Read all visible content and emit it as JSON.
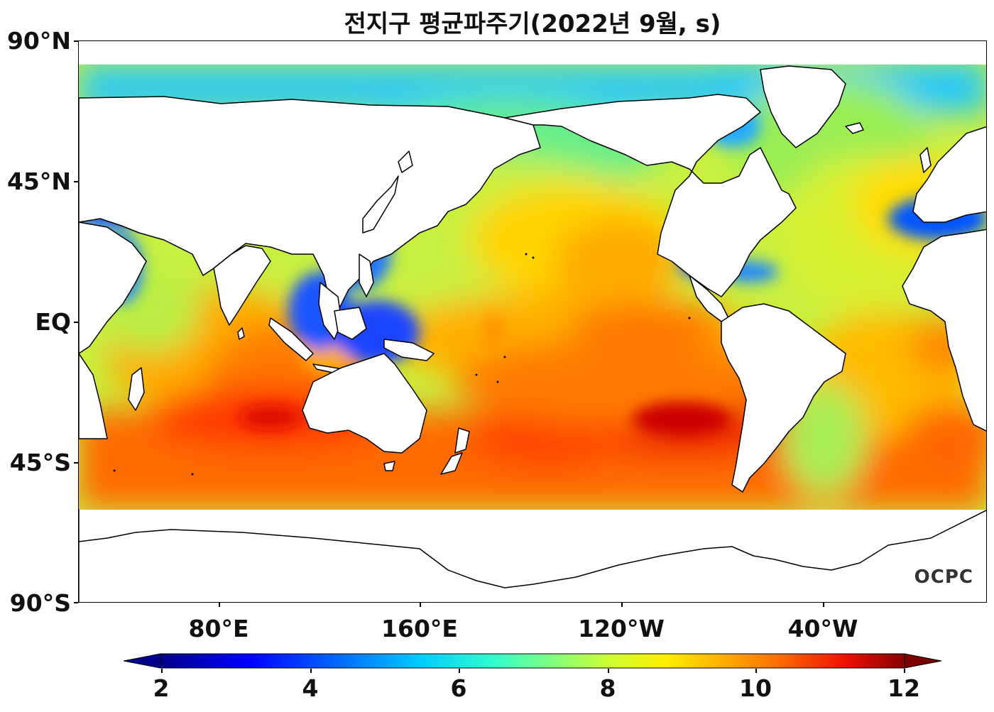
{
  "title": "전지구 평균파주기(2022년 9월, s)",
  "watermark": "OCPC",
  "axes": {
    "lat_labels": [
      "90°N",
      "45°N",
      "EQ",
      "45°S",
      "90°S"
    ],
    "lon_labels": [
      "80°E",
      "160°E",
      "120°W",
      "40°W"
    ]
  },
  "colorbar": {
    "ticks": [
      "2",
      "4",
      "6",
      "8",
      "10",
      "12"
    ],
    "min": 2,
    "max": 12,
    "extend": "both",
    "colormap": "jet"
  },
  "colors": {
    "deep_blue": "#00008b",
    "blue": "#0044ff",
    "cyan": "#22ffdd",
    "green_yellow": "#aaff44",
    "yellow": "#ffee00",
    "orange": "#ff8800",
    "red": "#ee1100",
    "dark_red": "#880000",
    "land": "#ffffff",
    "coastline": "#000000"
  }
}
